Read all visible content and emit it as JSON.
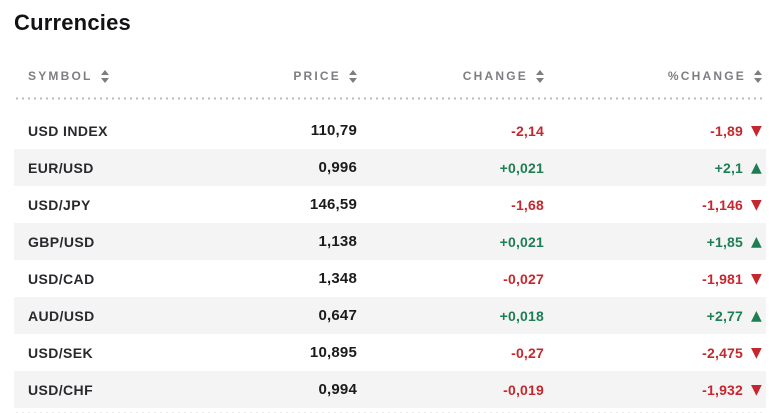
{
  "title": "Currencies",
  "colors": {
    "positive": "#1e7e53",
    "negative": "#c4282e",
    "row_alt": "#f4f4f5",
    "header_text": "#7c7e82"
  },
  "icons": {
    "up": "▲",
    "down": "▼",
    "sort": "sort-arrows"
  },
  "table": {
    "columns": [
      {
        "label": "SYMBOL"
      },
      {
        "label": "PRICE"
      },
      {
        "label": "CHANGE"
      },
      {
        "label": "%CHANGE"
      }
    ],
    "rows": [
      {
        "symbol": "USD INDEX",
        "price": "110,79",
        "change": "-2,14",
        "pct_change": "-1,89",
        "direction": "down"
      },
      {
        "symbol": "EUR/USD",
        "price": "0,996",
        "change": "+0,021",
        "pct_change": "+2,1",
        "direction": "up"
      },
      {
        "symbol": "USD/JPY",
        "price": "146,59",
        "change": "-1,68",
        "pct_change": "-1,146",
        "direction": "down"
      },
      {
        "symbol": "GBP/USD",
        "price": "1,138",
        "change": "+0,021",
        "pct_change": "+1,85",
        "direction": "up"
      },
      {
        "symbol": "USD/CAD",
        "price": "1,348",
        "change": "-0,027",
        "pct_change": "-1,981",
        "direction": "down"
      },
      {
        "symbol": "AUD/USD",
        "price": "0,647",
        "change": "+0,018",
        "pct_change": "+2,77",
        "direction": "up"
      },
      {
        "symbol": "USD/SEK",
        "price": "10,895",
        "change": "-0,27",
        "pct_change": "-2,475",
        "direction": "down"
      },
      {
        "symbol": "USD/CHF",
        "price": "0,994",
        "change": "-0,019",
        "pct_change": "-1,932",
        "direction": "down"
      }
    ]
  }
}
